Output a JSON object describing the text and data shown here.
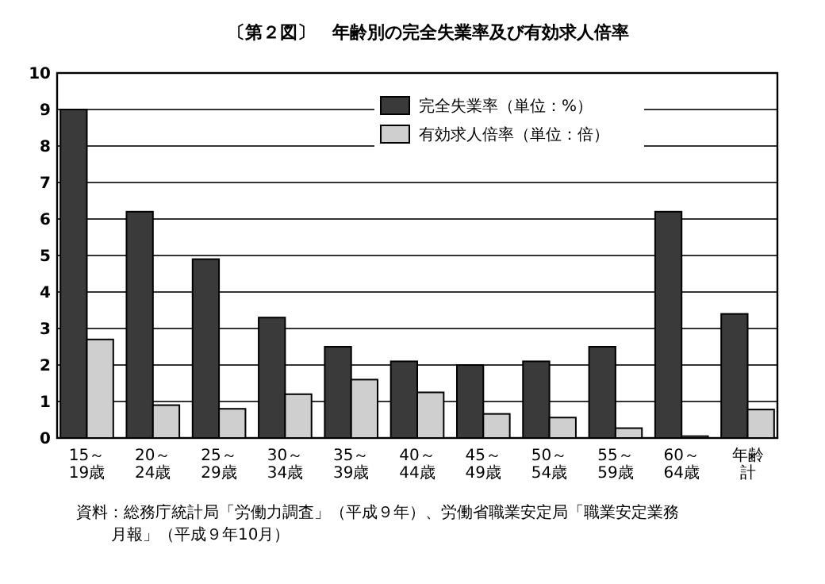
{
  "chart_data": {
    "type": "bar",
    "title": "〔第２図〕　年齢別の完全失業率及び有効求人倍率",
    "categories": [
      "15～19歳",
      "20～24歳",
      "25～29歳",
      "30～34歳",
      "35～39歳",
      "40～44歳",
      "45～49歳",
      "50～54歳",
      "55～59歳",
      "60～64歳",
      "年齢計"
    ],
    "series": [
      {
        "name": "完全失業率（単位：%）",
        "color": "#3a3a3a",
        "values": [
          9.0,
          6.2,
          4.9,
          3.3,
          2.5,
          2.1,
          2.0,
          2.1,
          2.5,
          6.2,
          3.4
        ]
      },
      {
        "name": "有効求人倍率（単位：倍）",
        "color": "#cfcfcf",
        "values": [
          2.7,
          0.9,
          0.8,
          1.2,
          1.6,
          1.25,
          0.66,
          0.56,
          0.27,
          0.05,
          0.78
        ]
      }
    ],
    "ylim": [
      0,
      10
    ],
    "yticks": [
      0,
      1,
      2,
      3,
      4,
      5,
      6,
      7,
      8,
      9,
      10
    ],
    "grid": "y",
    "legend": "top",
    "annotations": [
      "資料：総務庁統計局「労働力調査」（平成９年）、労働省職業安定局「職業安定業務月報」（平成９年10月）"
    ]
  }
}
